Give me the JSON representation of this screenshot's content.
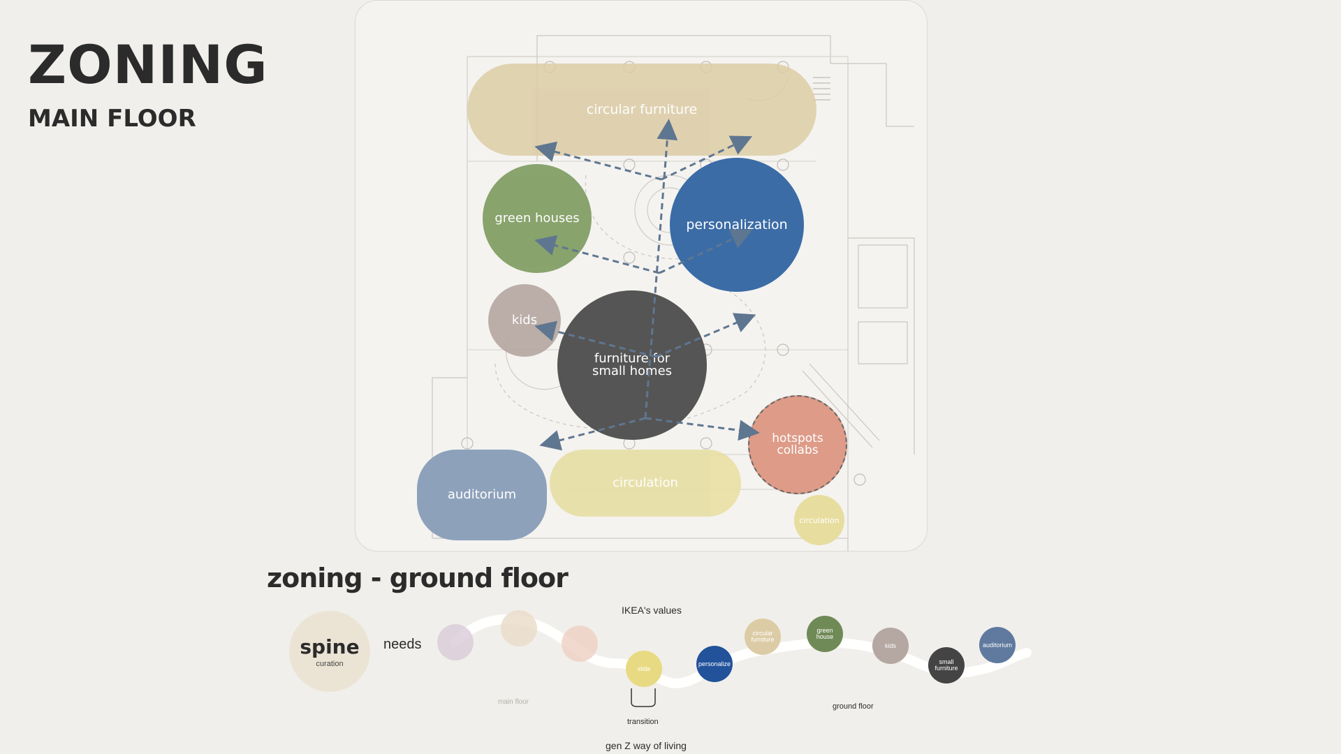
{
  "header": {
    "title": "ZONING",
    "subtitle": "MAIN FLOOR"
  },
  "zones": {
    "circular_furniture": "circular furniture",
    "green_houses": "green houses",
    "personalization": "personalization",
    "kids": "kids",
    "small_homes": "furniture for small homes",
    "hotspots": "hotspots collabs",
    "auditorium": "auditorium",
    "circulation_main": "circulation",
    "circulation_small": "circulation"
  },
  "colors": {
    "circular_furniture": "#dccca5",
    "green_houses": "#7d9b5e",
    "personalization": "#3b6ca6",
    "kids": "#b5a7a1",
    "small_homes": "#555555",
    "hotspots": "#dd9b88",
    "auditorium": "#8da1ba",
    "circulation": "#e7dd9f",
    "arrow": "#5f7690"
  },
  "ground_floor": {
    "title": "zoning - ground floor",
    "spine_label": "spine",
    "spine_sub": "curation",
    "needs": "needs",
    "ikea_values": "IKEA's values",
    "main_floor_label": "main floor",
    "ground_floor_label": "ground floor",
    "transition_label": "transition",
    "gen_z_label": "gen Z way of living",
    "nodes": {
      "slide": "slide",
      "personalize": "personalize",
      "circular_furniture": "circular furniture",
      "green_house": "green house",
      "kids": "kids",
      "small_furniture": "small furniture",
      "auditorium": "auditorium"
    }
  }
}
